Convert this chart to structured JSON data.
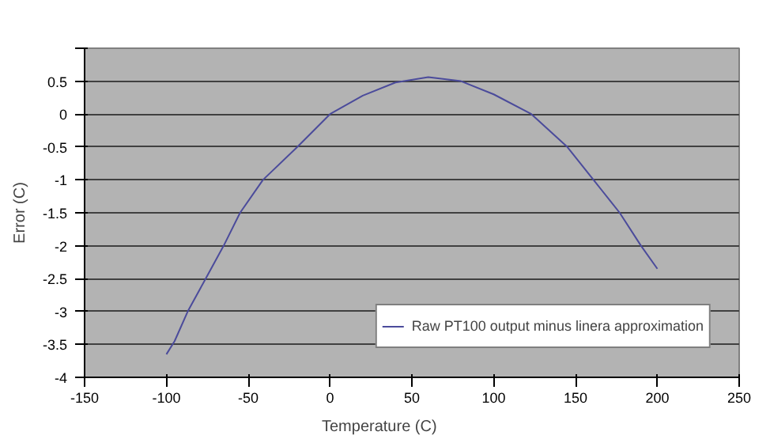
{
  "chart_data": {
    "type": "line",
    "xlabel": "Temperature (C)",
    "ylabel": "Error (C)",
    "x": [
      -100,
      -95,
      -87,
      -76,
      -65,
      -55,
      -41,
      -20,
      0,
      20,
      40,
      60,
      80,
      100,
      123,
      145,
      161,
      177,
      190,
      200
    ],
    "series": [
      {
        "name": "Raw PT100 output minus linera approximation",
        "color": "#4b4b9b",
        "values": [
          -3.65,
          -3.45,
          -3.0,
          -2.5,
          -2.0,
          -1.5,
          -1.0,
          -0.5,
          0.0,
          0.28,
          0.48,
          0.56,
          0.5,
          0.3,
          0.0,
          -0.5,
          -1.0,
          -1.5,
          -2.0,
          -2.35
        ]
      }
    ],
    "xlim": [
      -150,
      250
    ],
    "ylim": [
      -4,
      1
    ],
    "xticks": [
      -150,
      -100,
      -50,
      0,
      50,
      100,
      150,
      200,
      250
    ],
    "yticks": [
      {
        "value": 1,
        "label": null
      },
      0.5,
      0,
      -0.5,
      -1,
      -1.5,
      -2,
      -2.5,
      -3,
      -3.5,
      -4
    ],
    "grid": "y",
    "legend": "bottom right",
    "line_style": "solid"
  }
}
